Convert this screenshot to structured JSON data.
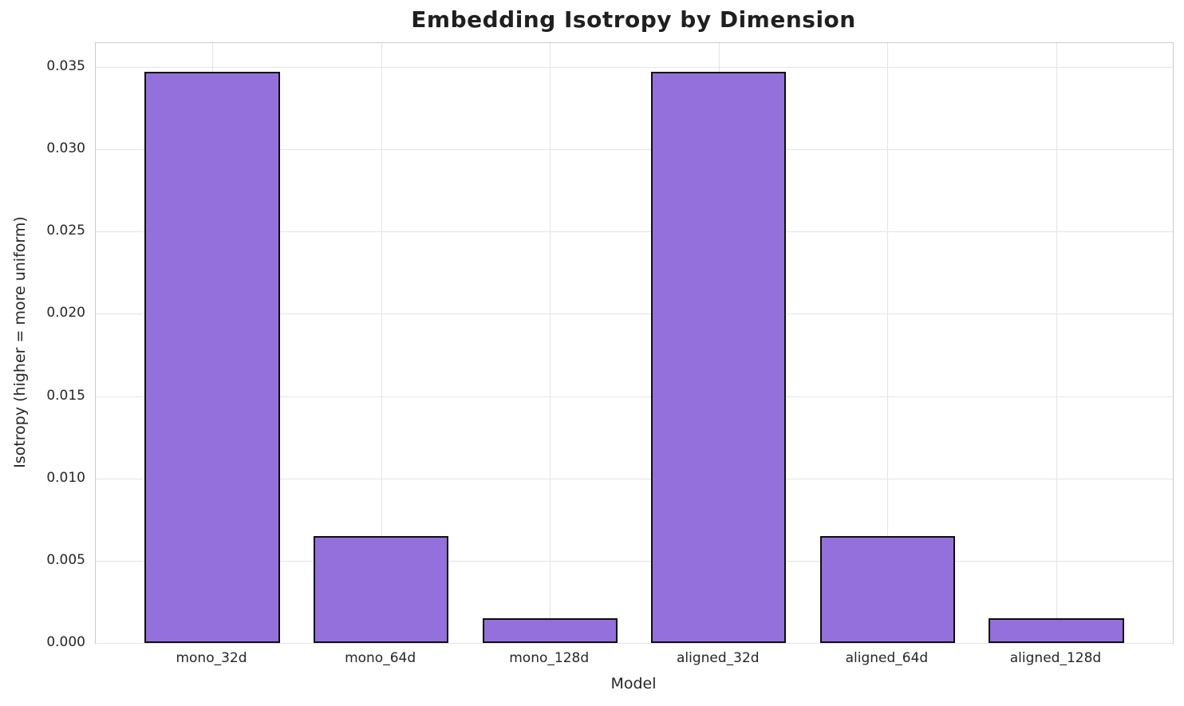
{
  "chart_data": {
    "type": "bar",
    "title": "Embedding Isotropy by Dimension",
    "xlabel": "Model",
    "ylabel": "Isotropy (higher = more uniform)",
    "categories": [
      "mono_32d",
      "mono_64d",
      "mono_128d",
      "aligned_32d",
      "aligned_64d",
      "aligned_128d"
    ],
    "values": [
      0.0347,
      0.0065,
      0.0015,
      0.0347,
      0.0065,
      0.0015
    ],
    "yticks": [
      0.0,
      0.005,
      0.01,
      0.015,
      0.02,
      0.025,
      0.03,
      0.035
    ],
    "ytick_labels": [
      "0.000",
      "0.005",
      "0.010",
      "0.015",
      "0.020",
      "0.025",
      "0.030",
      "0.035"
    ],
    "ylim": [
      0,
      0.03645
    ],
    "xlim_units": [
      -0.69,
      5.69
    ],
    "bar_width_units": 0.8,
    "grid": true,
    "legend_position": "none",
    "colors": {
      "bar_fill": "#9370DB",
      "bar_edge": "#0d0d0d",
      "grid_line": "#e4e4e4",
      "spine": "#cccccc",
      "text": "#262626",
      "title_text": "#1f1f1f",
      "background": "#ffffff"
    }
  }
}
